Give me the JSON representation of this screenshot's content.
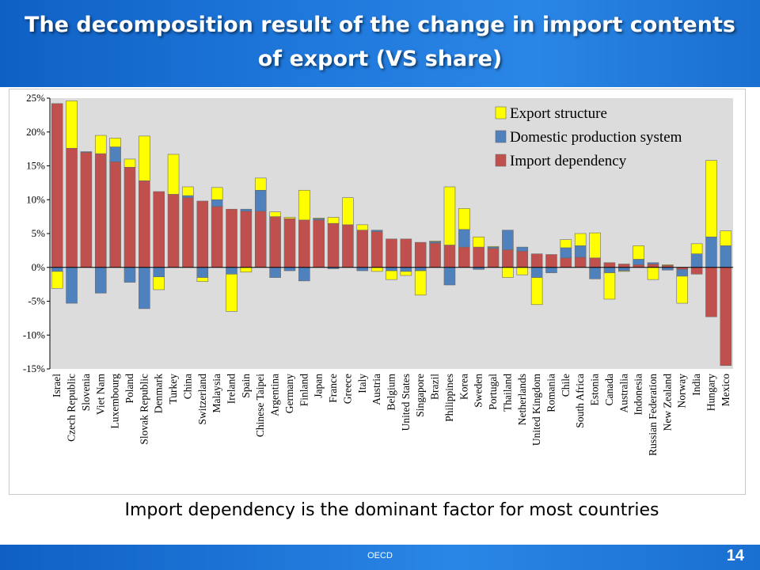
{
  "slide": {
    "title_line1": "The decomposition result of the change in import contents",
    "title_line2": "of export (VS share)",
    "caption": "Import dependency is the dominant factor for most countries",
    "footer_org": "OECD",
    "page_number": "14"
  },
  "colors": {
    "import": "#c0504d",
    "domestic": "#4f81bd",
    "export": "#ffff00",
    "plot_bg": "#dcdcdc"
  },
  "chart_data": {
    "type": "bar",
    "stacked": true,
    "title": "",
    "xlabel": "",
    "ylabel": "",
    "ylim": [
      -15,
      25
    ],
    "yticks": [
      -15,
      -10,
      -5,
      0,
      5,
      10,
      15,
      20,
      25
    ],
    "ytick_labels": [
      "-15%",
      "-10%",
      "-5%",
      "0%",
      "5%",
      "10%",
      "15%",
      "20%",
      "25%"
    ],
    "grid": false,
    "legend_position": "top-right",
    "categories": [
      "Israel",
      "Czech Republic",
      "Slovenia",
      "Viet Nam",
      "Luxembourg",
      "Poland",
      "Slovak Republic",
      "Denmark",
      "Turkey",
      "China",
      "Switzerland",
      "Malaysia",
      "Ireland",
      "Spain",
      "Chinese Taipei",
      "Argentina",
      "Germany",
      "Finland",
      "Japan",
      "France",
      "Greece",
      "Italy",
      "Austria",
      "Belgium",
      "United States",
      "Singapore",
      "Brazil",
      "Philippines",
      "Korea",
      "Sweden",
      "Portugal",
      "Thailand",
      "Netherlands",
      "United Kingdom",
      "Romania",
      "Chile",
      "South Africa",
      "Estonia",
      "Canada",
      "Australia",
      "Indonesia",
      "Russian Federation",
      "New Zealand",
      "Norway",
      "India",
      "Hungary",
      "Mexico"
    ],
    "series": [
      {
        "name": "Import dependency",
        "values": [
          24.2,
          17.6,
          17.0,
          16.8,
          15.6,
          14.8,
          12.8,
          11.2,
          10.8,
          10.3,
          9.8,
          9.0,
          8.6,
          8.3,
          8.3,
          7.5,
          7.2,
          7.0,
          7.0,
          6.5,
          6.3,
          5.5,
          5.3,
          4.2,
          4.2,
          3.7,
          3.6,
          3.3,
          3.0,
          3.0,
          2.8,
          2.6,
          2.4,
          2.0,
          1.9,
          1.4,
          1.5,
          1.4,
          0.7,
          0.5,
          0.4,
          0.5,
          0.3,
          -0.3,
          -1.0,
          -7.3,
          -14.5
        ]
      },
      {
        "name": "Domestic production system",
        "values": [
          -0.6,
          -5.3,
          0.1,
          -3.8,
          2.2,
          -2.2,
          -6.1,
          -1.4,
          0.0,
          0.3,
          -1.5,
          1.0,
          -1.0,
          0.3,
          3.1,
          -1.5,
          -0.5,
          -2.0,
          0.2,
          -0.2,
          0.0,
          -0.5,
          0.2,
          -0.5,
          -0.6,
          -0.5,
          0.2,
          -2.6,
          2.6,
          -0.3,
          0.2,
          2.9,
          0.6,
          -1.5,
          -0.8,
          1.5,
          1.7,
          -1.7,
          -0.8,
          -0.5,
          0.8,
          0.2,
          -0.4,
          -1.0,
          2.0,
          4.5,
          3.2
        ]
      },
      {
        "name": "Export structure",
        "values": [
          -2.5,
          7.0,
          0.0,
          2.7,
          1.3,
          1.2,
          6.6,
          -1.9,
          5.9,
          1.3,
          -0.6,
          1.8,
          -5.5,
          -0.7,
          1.8,
          0.7,
          0.2,
          4.4,
          0.1,
          0.9,
          4.0,
          0.8,
          -0.6,
          -1.3,
          -0.6,
          -3.6,
          0.1,
          8.6,
          3.1,
          1.5,
          0.1,
          -1.5,
          -1.1,
          -4.0,
          0.0,
          1.2,
          1.8,
          3.7,
          -3.9,
          -0.1,
          2.0,
          -1.8,
          0.1,
          -4.0,
          1.5,
          11.3,
          2.2
        ]
      }
    ]
  }
}
